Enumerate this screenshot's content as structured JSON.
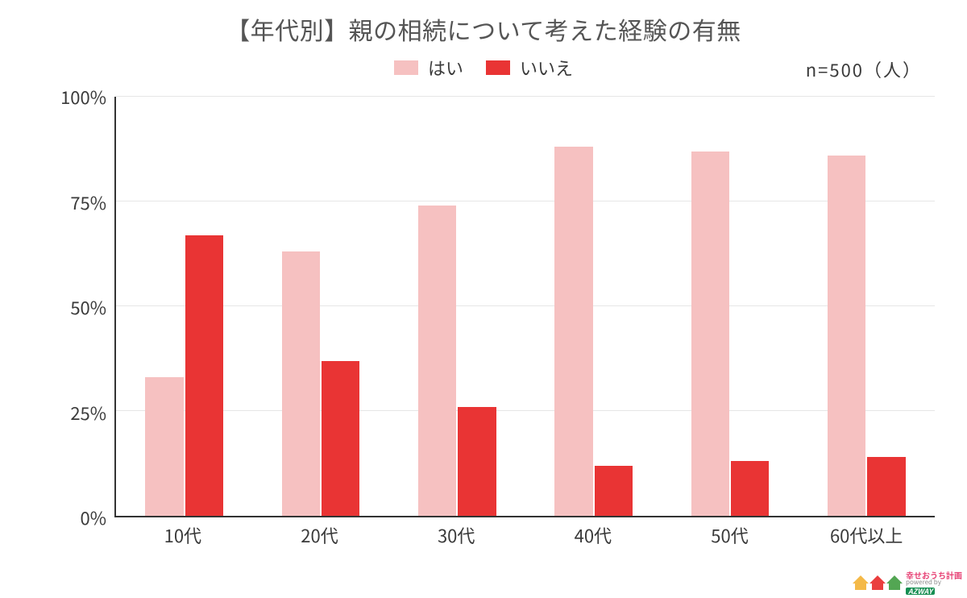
{
  "chart": {
    "type": "bar",
    "title": "【年代別】親の相続について考えた経験の有無",
    "title_fontsize": 30,
    "title_color": "#555555",
    "sample_size_label": "n=500（人）",
    "sample_size_fontsize": 22,
    "legend": {
      "items": [
        {
          "label": "はい",
          "color": "#f6c1c1"
        },
        {
          "label": "いいえ",
          "color": "#e93434"
        }
      ],
      "fontsize": 22
    },
    "categories": [
      "10代",
      "20代",
      "30代",
      "40代",
      "50代",
      "60代以上"
    ],
    "series": [
      {
        "name": "はい",
        "color": "#f6c1c1",
        "values": [
          33,
          63,
          74,
          88,
          87,
          86
        ]
      },
      {
        "name": "いいえ",
        "color": "#e93434",
        "values": [
          67,
          37,
          26,
          12,
          13,
          14
        ]
      }
    ],
    "y_axis": {
      "min": 0,
      "max": 100,
      "tick_step": 25,
      "tick_labels": [
        "0%",
        "25%",
        "50%",
        "75%",
        "100%"
      ],
      "label_fontsize": 22
    },
    "x_axis": {
      "label_fontsize": 22
    },
    "grid_color": "#e6e6e6",
    "axis_line_color": "#333333",
    "background_color": "#ffffff",
    "bar_width_pct": 28,
    "group_gap_pct": 2
  },
  "watermark": {
    "line1": "幸せおうち計画",
    "line2": "powered by",
    "line3": "AZWAY",
    "house_colors": [
      "#f4b63f",
      "#e93434",
      "#4aa24a"
    ]
  }
}
